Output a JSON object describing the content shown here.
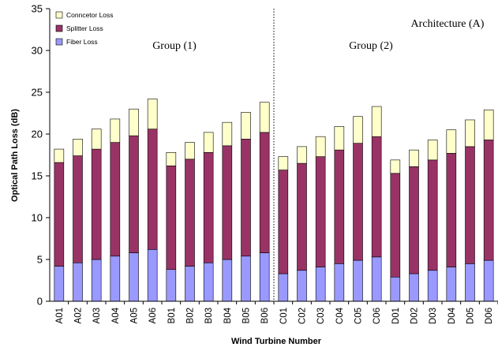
{
  "chart_data": {
    "type": "bar",
    "stacked": true,
    "ylabel": "Optical Path Loss (dB)",
    "xlabel": "Wind Turbine Number",
    "ylim": [
      0,
      35
    ],
    "yticks": [
      0,
      5,
      10,
      15,
      20,
      25,
      30,
      35
    ],
    "categories": [
      "A01",
      "A02",
      "A03",
      "A04",
      "A05",
      "A06",
      "B01",
      "B02",
      "B03",
      "B04",
      "B05",
      "B06",
      "C01",
      "C02",
      "C03",
      "C04",
      "C05",
      "C06",
      "D01",
      "D02",
      "D03",
      "D04",
      "D05",
      "D06"
    ],
    "series": [
      {
        "name": "Fiber Loss",
        "color": "#9999ff",
        "values": [
          4.2,
          4.6,
          5.0,
          5.4,
          5.8,
          6.2,
          3.8,
          4.2,
          4.6,
          5.0,
          5.4,
          5.8,
          3.3,
          3.7,
          4.1,
          4.5,
          4.9,
          5.3,
          2.9,
          3.3,
          3.7,
          4.1,
          4.5,
          4.9
        ]
      },
      {
        "name": "Splitter Loss",
        "color": "#993366",
        "values": [
          12.4,
          12.8,
          13.2,
          13.6,
          14.0,
          14.4,
          12.4,
          12.8,
          13.2,
          13.6,
          14.0,
          14.4,
          12.4,
          12.8,
          13.2,
          13.6,
          14.0,
          14.4,
          12.4,
          12.8,
          13.2,
          13.6,
          14.0,
          14.4
        ]
      },
      {
        "name": "Conncetor Loss",
        "color": "#ffffcc",
        "values": [
          1.6,
          2.0,
          2.4,
          2.8,
          3.2,
          3.6,
          1.6,
          2.0,
          2.4,
          2.8,
          3.2,
          3.6,
          1.6,
          2.0,
          2.4,
          2.8,
          3.2,
          3.6,
          1.6,
          2.0,
          2.4,
          2.8,
          3.2,
          3.6
        ]
      }
    ],
    "legend_order": [
      "Conncetor Loss",
      "Splitter Loss",
      "Fiber Loss"
    ],
    "legend_position": "top-left",
    "grid": false,
    "annotations": {
      "group1": "Group (1)",
      "group2": "Group (2)",
      "architecture": "Architecture (A)"
    },
    "divider_after_category": "B06"
  }
}
